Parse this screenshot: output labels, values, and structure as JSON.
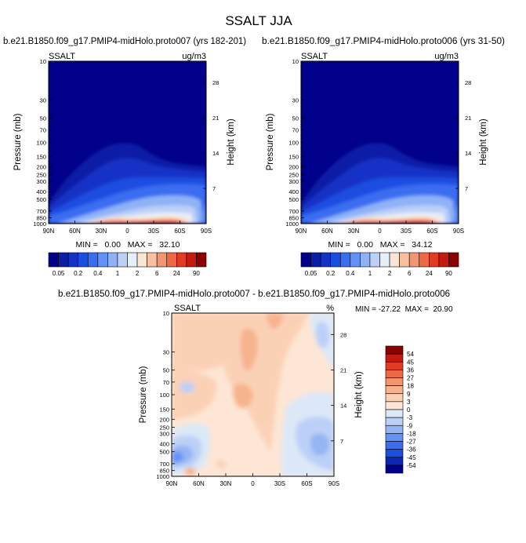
{
  "figure_title": "SSALT JJA",
  "chart_data": [
    {
      "type": "heatmap",
      "title": "b.e21.B1850.f09_g17.PMIP4-midHolo.proto007 (yrs 182-201)",
      "left_string": "SSALT",
      "units": "ug/m3",
      "ylabel": "Pressure (mb)",
      "ylabel_right": "Height (km)",
      "xticks": [
        "90N",
        "60N",
        "30N",
        "0",
        "30S",
        "60S",
        "90S"
      ],
      "yticks": [
        "10",
        "30",
        "50",
        "70",
        "100",
        "150",
        "200",
        "250",
        "300",
        "400",
        "500",
        "700",
        "850",
        "1000"
      ],
      "height_ticks": [
        "28",
        "21",
        "14",
        "7"
      ],
      "min": "0.00",
      "max": "32.10",
      "minmax_label": "MIN =   0.00   MAX =   32.10",
      "colorbar_labels": [
        "0.05",
        "0.2",
        "0.4",
        "1",
        "2",
        "6",
        "24",
        "90"
      ]
    },
    {
      "type": "heatmap",
      "title": "b.e21.B1850.f09_g17.PMIP4-midHolo.proto006 (yrs 31-50)",
      "left_string": "SSALT",
      "units": "ug/m3",
      "ylabel": "Pressure (mb)",
      "ylabel_right": "Height (km)",
      "xticks": [
        "90N",
        "60N",
        "30N",
        "0",
        "30S",
        "60S",
        "90S"
      ],
      "yticks": [
        "10",
        "30",
        "50",
        "70",
        "100",
        "150",
        "200",
        "250",
        "300",
        "400",
        "500",
        "700",
        "850",
        "1000"
      ],
      "height_ticks": [
        "28",
        "21",
        "14",
        "7"
      ],
      "min": "0.00",
      "max": "34.12",
      "minmax_label": "MIN =   0.00   MAX =   34.12",
      "colorbar_labels": [
        "0.05",
        "0.2",
        "0.4",
        "1",
        "2",
        "6",
        "24",
        "90"
      ]
    },
    {
      "type": "heatmap",
      "title": "b.e21.B1850.f09_g17.PMIP4-midHolo.proto007 - b.e21.B1850.f09_g17.PMIP4-midHolo.proto006",
      "left_string": "SSALT",
      "units": "%",
      "ylabel": "Pressure (mb)",
      "ylabel_right": "Height (km)",
      "xticks": [
        "90N",
        "60N",
        "30N",
        "0",
        "30S",
        "60S",
        "90S"
      ],
      "yticks": [
        "10",
        "30",
        "50",
        "70",
        "100",
        "150",
        "200",
        "250",
        "300",
        "400",
        "500",
        "700",
        "850",
        "1000"
      ],
      "height_ticks": [
        "28",
        "21",
        "14",
        "7"
      ],
      "min": "-27.22",
      "max": "20.90",
      "minmax_label": "MIN = -27.22  MAX =  20.90",
      "colorbar_labels": [
        "54",
        "45",
        "36",
        "27",
        "18",
        "9",
        "3",
        "0",
        "-3",
        "-9",
        "-18",
        "-27",
        "-36",
        "-45",
        "-54"
      ]
    }
  ],
  "colors": {
    "abs_palette": [
      "#00008a",
      "#0a1ea6",
      "#1233c6",
      "#1a4ee0",
      "#3a6df0",
      "#6392f4",
      "#8fb2f6",
      "#bcd0f7",
      "#e6eef8",
      "#fbe6d6",
      "#f8c0a0",
      "#f29672",
      "#ec6a46",
      "#e03c22",
      "#c51a10",
      "#8c0000"
    ],
    "diff_palette": [
      "#8c0000",
      "#c61a10",
      "#e03c22",
      "#ed6a46",
      "#f2966e",
      "#f7b38e",
      "#fbd1b6",
      "#fde6d6",
      "#dbe8f8",
      "#bcd0f7",
      "#94b4f4",
      "#6392f4",
      "#3a6df0",
      "#1a4ee0",
      "#0a28b4",
      "#00008a"
    ]
  }
}
